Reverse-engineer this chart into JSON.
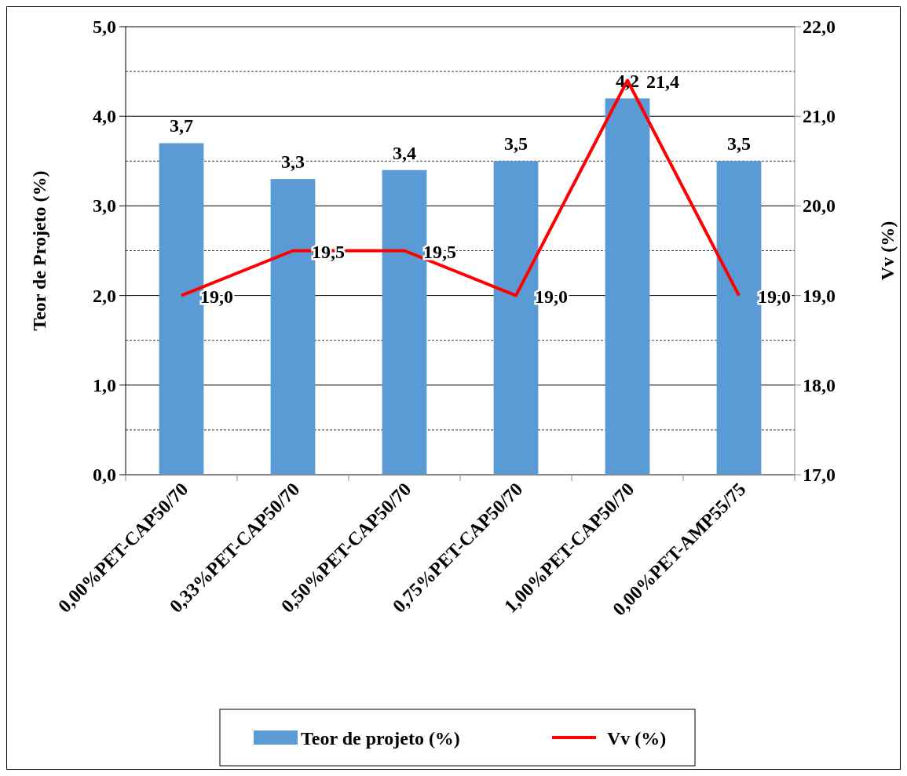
{
  "chart_data": {
    "type": "bar",
    "ylabel": "Teor de Projeto (%)",
    "y2label": "Vv (%)",
    "categories": [
      "0,00%PET-CAP50/70",
      "0,33%PET-CAP50/70",
      "0,50%PET-CAP50/70",
      "0,75%PET-CAP50/70",
      "1,00%PET-CAP50/70",
      "0,00%PET-AMP55/75"
    ],
    "series": [
      {
        "name": "Teor de projeto (%)",
        "color": "#5b9bd5",
        "values": [
          3.7,
          3.3,
          3.4,
          3.5,
          4.2,
          3.5
        ],
        "value_labels": [
          "3,7",
          "3,3",
          "3,4",
          "3,5",
          "4,2",
          "3,5"
        ]
      },
      {
        "name": "Vv (%)",
        "type": "line",
        "axis": "y2",
        "color": "#ff0000",
        "values": [
          19.0,
          19.5,
          19.5,
          19.0,
          21.4,
          19.0
        ],
        "value_labels": [
          "19,0",
          "19,5",
          "19,5",
          "19,0",
          "21,4",
          "19,0"
        ]
      }
    ],
    "ylim": [
      0,
      5
    ],
    "yticks": [
      {
        "value": 0,
        "label": "0,0"
      },
      {
        "value": 0.5,
        "label": null
      },
      {
        "value": 1,
        "label": "1,0"
      },
      {
        "value": 1.5,
        "label": null
      },
      {
        "value": 2,
        "label": "2,0"
      },
      {
        "value": 2.5,
        "label": null
      },
      {
        "value": 3,
        "label": "3,0"
      },
      {
        "value": 3.5,
        "label": null
      },
      {
        "value": 4,
        "label": "4,0"
      },
      {
        "value": 4.5,
        "label": null
      },
      {
        "value": 5,
        "label": "5,0"
      }
    ],
    "y2lim": [
      17,
      22
    ],
    "y2ticks": [
      {
        "value": 17,
        "label": "17,0"
      },
      {
        "value": 18,
        "label": "18,0"
      },
      {
        "value": 19,
        "label": "19,0"
      },
      {
        "value": 20,
        "label": "20,0"
      },
      {
        "value": 21,
        "label": "21,0"
      },
      {
        "value": 22,
        "label": "22,0"
      }
    ],
    "grid": "y",
    "legend": "bottom",
    "marker": "none",
    "line_style": "solid"
  }
}
